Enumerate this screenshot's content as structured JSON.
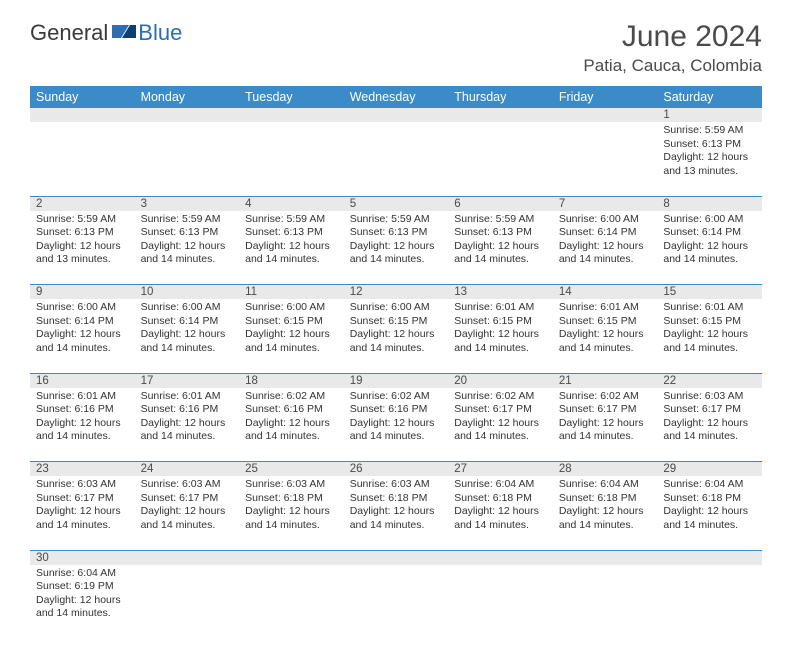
{
  "logo": {
    "general": "General",
    "blue": "Blue"
  },
  "title": "June 2024",
  "location": "Patia, Cauca, Colombia",
  "colors": {
    "header_bg": "#3b8bc9",
    "header_text": "#ffffff",
    "daynum_bg": "#e9e9e9",
    "text": "#333333",
    "rule": "#3b8bc9",
    "logo_blue": "#2b6fb0",
    "title_gray": "#4a4a4a"
  },
  "weekdays": [
    "Sunday",
    "Monday",
    "Tuesday",
    "Wednesday",
    "Thursday",
    "Friday",
    "Saturday"
  ],
  "weeks": [
    [
      null,
      null,
      null,
      null,
      null,
      null,
      {
        "n": "1",
        "sr": "5:59 AM",
        "ss": "6:13 PM",
        "dl": "12 hours and 13 minutes."
      }
    ],
    [
      {
        "n": "2",
        "sr": "5:59 AM",
        "ss": "6:13 PM",
        "dl": "12 hours and 13 minutes."
      },
      {
        "n": "3",
        "sr": "5:59 AM",
        "ss": "6:13 PM",
        "dl": "12 hours and 14 minutes."
      },
      {
        "n": "4",
        "sr": "5:59 AM",
        "ss": "6:13 PM",
        "dl": "12 hours and 14 minutes."
      },
      {
        "n": "5",
        "sr": "5:59 AM",
        "ss": "6:13 PM",
        "dl": "12 hours and 14 minutes."
      },
      {
        "n": "6",
        "sr": "5:59 AM",
        "ss": "6:13 PM",
        "dl": "12 hours and 14 minutes."
      },
      {
        "n": "7",
        "sr": "6:00 AM",
        "ss": "6:14 PM",
        "dl": "12 hours and 14 minutes."
      },
      {
        "n": "8",
        "sr": "6:00 AM",
        "ss": "6:14 PM",
        "dl": "12 hours and 14 minutes."
      }
    ],
    [
      {
        "n": "9",
        "sr": "6:00 AM",
        "ss": "6:14 PM",
        "dl": "12 hours and 14 minutes."
      },
      {
        "n": "10",
        "sr": "6:00 AM",
        "ss": "6:14 PM",
        "dl": "12 hours and 14 minutes."
      },
      {
        "n": "11",
        "sr": "6:00 AM",
        "ss": "6:15 PM",
        "dl": "12 hours and 14 minutes."
      },
      {
        "n": "12",
        "sr": "6:00 AM",
        "ss": "6:15 PM",
        "dl": "12 hours and 14 minutes."
      },
      {
        "n": "13",
        "sr": "6:01 AM",
        "ss": "6:15 PM",
        "dl": "12 hours and 14 minutes."
      },
      {
        "n": "14",
        "sr": "6:01 AM",
        "ss": "6:15 PM",
        "dl": "12 hours and 14 minutes."
      },
      {
        "n": "15",
        "sr": "6:01 AM",
        "ss": "6:15 PM",
        "dl": "12 hours and 14 minutes."
      }
    ],
    [
      {
        "n": "16",
        "sr": "6:01 AM",
        "ss": "6:16 PM",
        "dl": "12 hours and 14 minutes."
      },
      {
        "n": "17",
        "sr": "6:01 AM",
        "ss": "6:16 PM",
        "dl": "12 hours and 14 minutes."
      },
      {
        "n": "18",
        "sr": "6:02 AM",
        "ss": "6:16 PM",
        "dl": "12 hours and 14 minutes."
      },
      {
        "n": "19",
        "sr": "6:02 AM",
        "ss": "6:16 PM",
        "dl": "12 hours and 14 minutes."
      },
      {
        "n": "20",
        "sr": "6:02 AM",
        "ss": "6:17 PM",
        "dl": "12 hours and 14 minutes."
      },
      {
        "n": "21",
        "sr": "6:02 AM",
        "ss": "6:17 PM",
        "dl": "12 hours and 14 minutes."
      },
      {
        "n": "22",
        "sr": "6:03 AM",
        "ss": "6:17 PM",
        "dl": "12 hours and 14 minutes."
      }
    ],
    [
      {
        "n": "23",
        "sr": "6:03 AM",
        "ss": "6:17 PM",
        "dl": "12 hours and 14 minutes."
      },
      {
        "n": "24",
        "sr": "6:03 AM",
        "ss": "6:17 PM",
        "dl": "12 hours and 14 minutes."
      },
      {
        "n": "25",
        "sr": "6:03 AM",
        "ss": "6:18 PM",
        "dl": "12 hours and 14 minutes."
      },
      {
        "n": "26",
        "sr": "6:03 AM",
        "ss": "6:18 PM",
        "dl": "12 hours and 14 minutes."
      },
      {
        "n": "27",
        "sr": "6:04 AM",
        "ss": "6:18 PM",
        "dl": "12 hours and 14 minutes."
      },
      {
        "n": "28",
        "sr": "6:04 AM",
        "ss": "6:18 PM",
        "dl": "12 hours and 14 minutes."
      },
      {
        "n": "29",
        "sr": "6:04 AM",
        "ss": "6:18 PM",
        "dl": "12 hours and 14 minutes."
      }
    ],
    [
      {
        "n": "30",
        "sr": "6:04 AM",
        "ss": "6:19 PM",
        "dl": "12 hours and 14 minutes."
      },
      null,
      null,
      null,
      null,
      null,
      null
    ]
  ],
  "labels": {
    "sunrise": "Sunrise:",
    "sunset": "Sunset:",
    "daylight": "Daylight:"
  }
}
